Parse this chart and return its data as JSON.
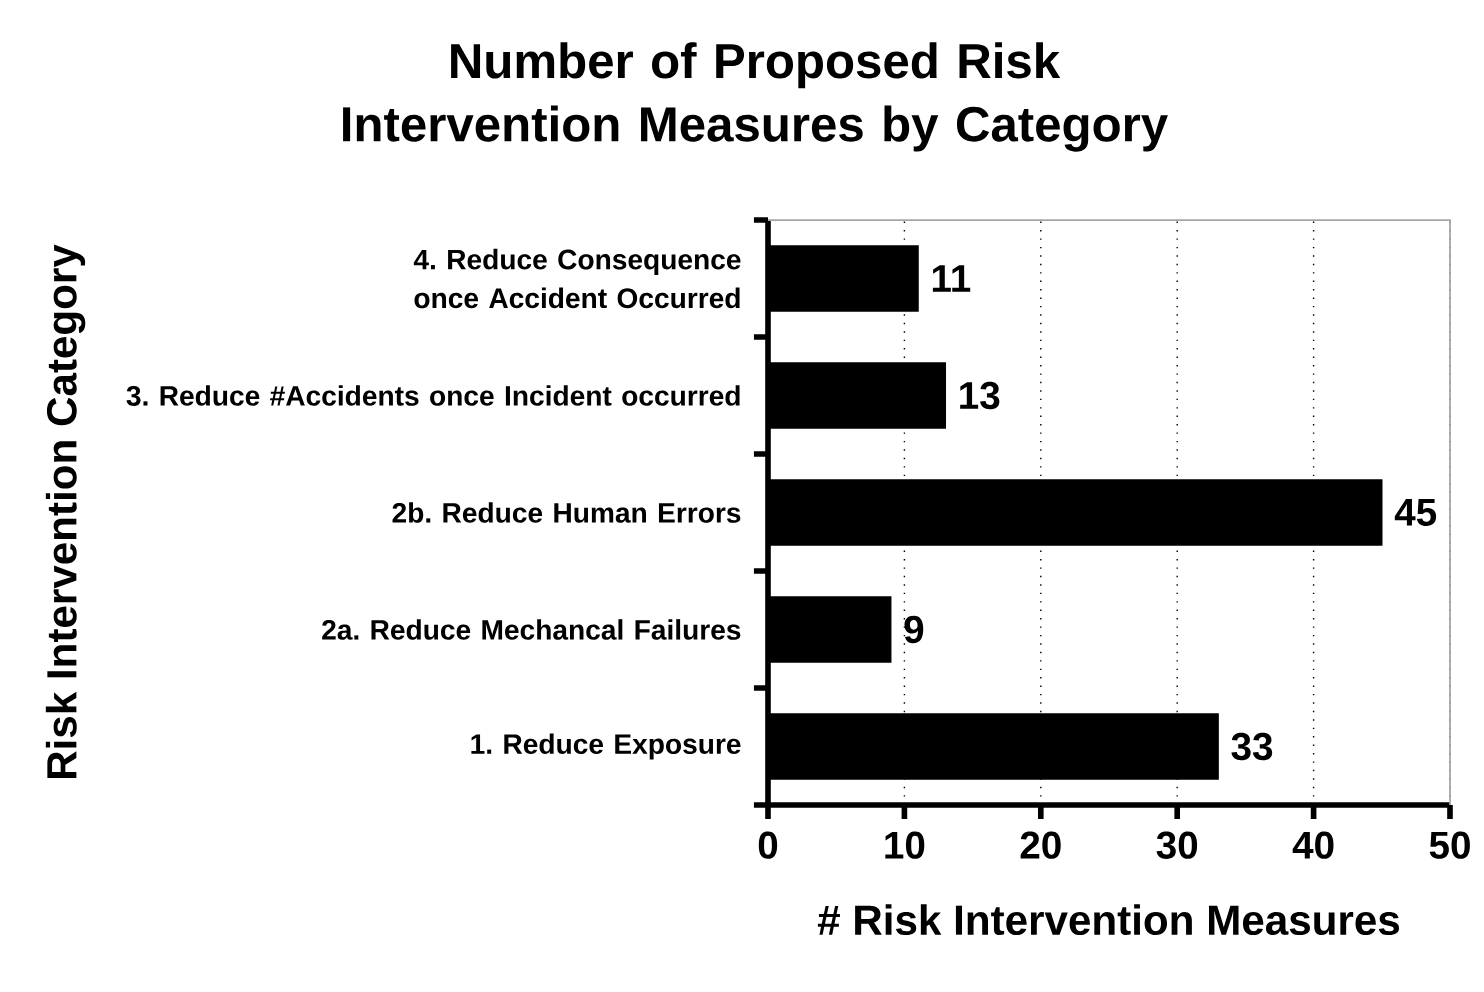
{
  "chart_data": {
    "type": "bar",
    "orientation": "horizontal",
    "title": "Number of Proposed Risk Intervention Measures by Category",
    "categories": [
      "4. Reduce Consequence once Accident Occurred",
      "3. Reduce #Accidents once Incident occurred",
      "2b. Reduce Human Errors",
      "2a. Reduce Mechancal Failures",
      "1. Reduce Exposure"
    ],
    "values": [
      11,
      13,
      45,
      9,
      33
    ],
    "color": "#000000",
    "xlim": [
      0,
      50
    ],
    "xticks": [
      0,
      10,
      20,
      30,
      40,
      50
    ],
    "xlabel": "# Risk Intervention Measures",
    "ylabel": "Risk Intervention Category",
    "data_labels": true,
    "grid": "x"
  }
}
